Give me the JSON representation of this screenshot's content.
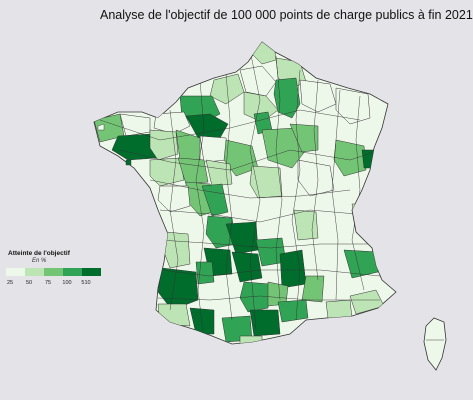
{
  "title": "Analyse de l'objectif de 100 000 points de charge publics à fin 2021",
  "legend": {
    "title": "Atteinte de l'objectif",
    "subtitle": "En %",
    "ticks": [
      "25",
      "50",
      "75",
      "100",
      "510"
    ],
    "colors": [
      "#eef8ea",
      "#bde4b4",
      "#74c476",
      "#31a354",
      "#006d2c"
    ]
  },
  "colors": {
    "background": "#e4e3e8",
    "border": "#333333"
  }
}
